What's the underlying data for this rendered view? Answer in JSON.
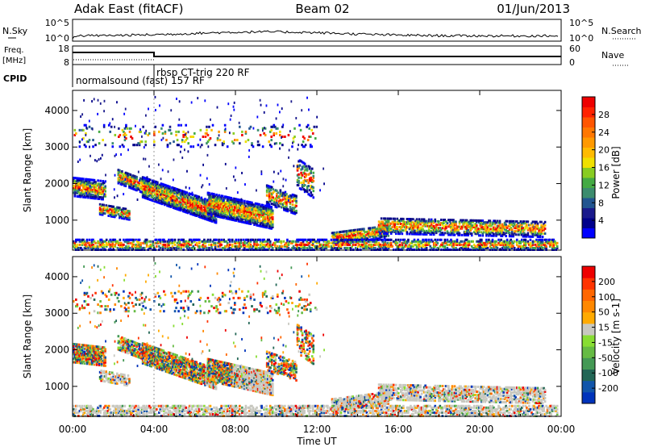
{
  "header": {
    "station": "Adak East (fitACF)",
    "beam": "Beam 02",
    "date": "01/Jun/2013"
  },
  "colors": {
    "axis": "#000000",
    "background": "#ffffff",
    "ground_scatter": "#c8c8c0"
  },
  "panels": {
    "nsky": {
      "label": "N.Sky",
      "left_ticks": [
        "10^5",
        "10^0"
      ],
      "right_ticks": [
        "10^5",
        "10^0"
      ],
      "right_label": "N.Search"
    },
    "freq": {
      "label_line1": "Freq.",
      "label_line2": "[MHz]",
      "left_ticks": [
        "18",
        "8"
      ],
      "right_ticks": [
        "60",
        "0"
      ],
      "right_label": "Nave"
    },
    "cpid": {
      "label": "CPID",
      "programs": [
        {
          "name": "normalsound (fast) 157 RF",
          "start_hour": 0,
          "end_hour": 4
        },
        {
          "name": "rbsp CT-trig 220 RF",
          "start_hour": 4,
          "end_hour": 24
        }
      ]
    }
  },
  "chart_data": [
    {
      "type": "heatmap",
      "name": "power",
      "xlabel": "",
      "ylabel": "Slant Range [km]",
      "xlim": [
        0,
        24
      ],
      "ylim": [
        180,
        4550
      ],
      "yticks": [
        1000,
        2000,
        3000,
        4000
      ],
      "colorbar": {
        "label": "Power [dB]",
        "ticks": [
          28,
          24,
          20,
          16,
          12,
          8,
          4
        ],
        "range": [
          0,
          30
        ],
        "colors": [
          "#0000ff",
          "#00008b",
          "#1a1a8c",
          "#225590",
          "#3c8c6e",
          "#44aa44",
          "#88cc22",
          "#f0e000",
          "#ffbb00",
          "#ff9900",
          "#ff7700",
          "#ff5500",
          "#ff2200",
          "#ee0000"
        ]
      }
    },
    {
      "type": "heatmap",
      "name": "velocity",
      "xlabel": "Time UT",
      "ylabel": "Slant Range [km]",
      "xlim": [
        0,
        24
      ],
      "ylim": [
        180,
        4550
      ],
      "xticks": [
        "00:00",
        "04:00",
        "08:00",
        "12:00",
        "16:00",
        "20:00",
        "00:00"
      ],
      "yticks": [
        1000,
        2000,
        3000,
        4000
      ],
      "colorbar": {
        "label": "Velocity [m s-1]",
        "ticks": [
          200,
          100,
          50,
          15,
          -15,
          -50,
          -100,
          -200
        ],
        "colors": [
          "#0033bb",
          "#1155aa",
          "#226655",
          "#449955",
          "#66bb44",
          "#88dd33",
          "#c8c8c0",
          "#ffaa00",
          "#ff8800",
          "#ff6600",
          "#ff3300",
          "#ee0000"
        ]
      }
    }
  ]
}
